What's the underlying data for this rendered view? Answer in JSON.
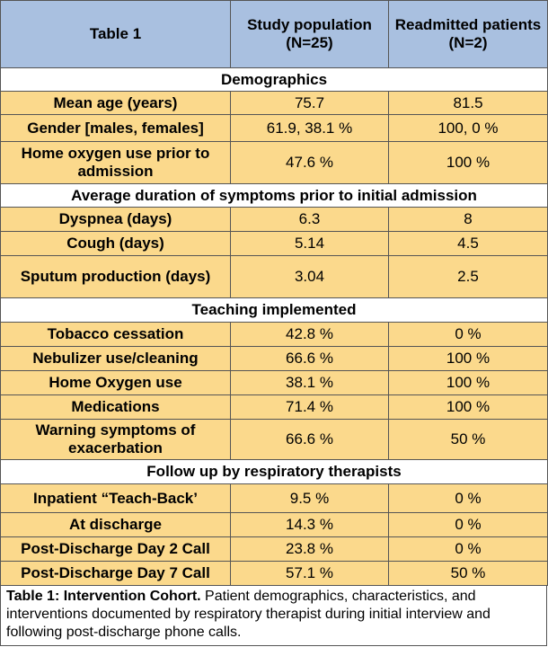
{
  "header": {
    "col1": "Table 1",
    "col2": "Study population (N=25)",
    "col3": "Readmitted patients (N=2)"
  },
  "sections": [
    {
      "title": "Demographics",
      "rows": [
        {
          "label": "Mean age (years)",
          "study": "75.7",
          "readmitted": "81.5"
        },
        {
          "label": "Gender [males, females]",
          "study": "61.9, 38.1 %",
          "readmitted": "100, 0 %"
        },
        {
          "label": "Home oxygen use prior to admission",
          "study": "47.6 %",
          "readmitted": "100 %"
        }
      ]
    },
    {
      "title": "Average duration of symptoms prior to initial admission",
      "rows": [
        {
          "label": "Dyspnea (days)",
          "study": "6.3",
          "readmitted": "8"
        },
        {
          "label": "Cough (days)",
          "study": "5.14",
          "readmitted": "4.5"
        },
        {
          "label": "Sputum production (days)",
          "study": "3.04",
          "readmitted": "2.5"
        }
      ]
    },
    {
      "title": "Teaching implemented",
      "rows": [
        {
          "label": "Tobacco cessation",
          "study": "42.8 %",
          "readmitted": "0 %"
        },
        {
          "label": "Nebulizer use/cleaning",
          "study": "66.6 %",
          "readmitted": "100 %"
        },
        {
          "label": "Home Oxygen use",
          "study": "38.1 %",
          "readmitted": "100 %"
        },
        {
          "label": "Medications",
          "study": "71.4 %",
          "readmitted": "100 %"
        },
        {
          "label": "Warning symptoms of exacerbation",
          "study": "66.6 %",
          "readmitted": "50 %"
        }
      ]
    },
    {
      "title": "Follow up by respiratory therapists",
      "rows": [
        {
          "label": "Inpatient “Teach-Back’",
          "study": "9.5 %",
          "readmitted": "0 %"
        },
        {
          "label": "At discharge",
          "study": "14.3 %",
          "readmitted": "0 %"
        },
        {
          "label": "Post-Discharge Day 2 Call",
          "study": "23.8 %",
          "readmitted": "0 %"
        },
        {
          "label": "Post-Discharge Day 7 Call",
          "study": "57.1 %",
          "readmitted": "50 %"
        }
      ]
    }
  ],
  "caption": {
    "bold": "Table 1: Intervention Cohort.",
    "text": " Patient demographics, characteristics, and interventions documented by respiratory therapist during initial interview and following post-discharge phone calls."
  },
  "colors": {
    "header_bg": "#a9c0e0",
    "data_bg": "#fbd98c",
    "section_bg": "#ffffff"
  }
}
